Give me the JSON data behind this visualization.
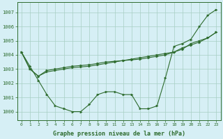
{
  "x": [
    0,
    1,
    2,
    3,
    4,
    5,
    6,
    7,
    8,
    9,
    10,
    11,
    12,
    13,
    14,
    15,
    16,
    17,
    18,
    19,
    20,
    21,
    22,
    23
  ],
  "y_zigzag": [
    1004.2,
    1003.2,
    1002.2,
    1001.2,
    1000.4,
    1000.2,
    1000.0,
    1000.0,
    1000.5,
    1001.2,
    1001.4,
    1001.4,
    1001.2,
    1001.2,
    1000.2,
    1000.2,
    1000.4,
    1002.4,
    1004.6,
    1004.8,
    1005.1,
    1006.0,
    1006.8,
    1007.2
  ],
  "y_line1": [
    1004.2,
    1003.0,
    1002.5,
    1002.8,
    1002.9,
    1003.0,
    1003.1,
    1003.15,
    1003.2,
    1003.3,
    1003.4,
    1003.5,
    1003.6,
    1003.7,
    1003.8,
    1003.9,
    1004.0,
    1004.1,
    1004.2,
    1004.4,
    1004.8,
    1005.0,
    1005.2,
    1005.6
  ],
  "y_line2": [
    1004.2,
    1003.0,
    1002.5,
    1002.9,
    1003.0,
    1003.1,
    1003.2,
    1003.25,
    1003.3,
    1003.4,
    1003.5,
    1003.55,
    1003.6,
    1003.65,
    1003.7,
    1003.8,
    1003.9,
    1004.0,
    1004.2,
    1004.5,
    1004.7,
    1004.9,
    1005.2,
    1005.6
  ],
  "bg_color": "#d6eff5",
  "grid_color": "#a8cfc4",
  "line_color": "#2d6b2d",
  "yticks": [
    1000,
    1001,
    1002,
    1003,
    1004,
    1005,
    1006,
    1007
  ],
  "xlabel": "Graphe pression niveau de la mer (hPa)",
  "ylim": [
    999.4,
    1007.7
  ],
  "xlim": [
    -0.5,
    23.5
  ]
}
